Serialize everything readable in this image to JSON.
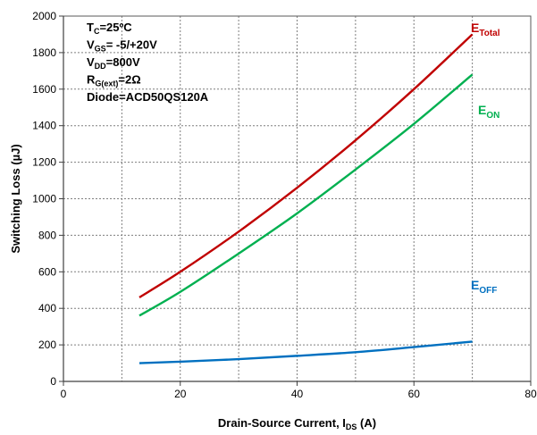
{
  "chart_data": {
    "type": "line",
    "xlabel_main": "Drain-Source Current, I",
    "xlabel_sub": "DS",
    "xlabel_unit": " (A)",
    "ylabel": "Switching Loss  (µJ)",
    "xlim": [
      0,
      80
    ],
    "ylim": [
      0,
      2000
    ],
    "xticks": [
      0,
      20,
      40,
      60,
      80
    ],
    "yticks": [
      0,
      200,
      400,
      600,
      800,
      1000,
      1200,
      1400,
      1600,
      1800,
      2000
    ],
    "grid": true,
    "conditions": [
      {
        "main": "T",
        "sub": "C",
        "rest": "=25ºC"
      },
      {
        "main": "V",
        "sub": "GS",
        "rest": "= -5/+20V"
      },
      {
        "main": "V",
        "sub": "DD",
        "rest": "=800V"
      },
      {
        "main": "R",
        "sub": "G(ext)",
        "rest": "=2Ω"
      },
      {
        "main": "Diode=ACD50QS120A",
        "sub": "",
        "rest": ""
      }
    ],
    "series": [
      {
        "name": "Total",
        "label_main": "E",
        "label_sub": "Total",
        "color": "#c00000",
        "x": [
          13,
          20,
          30,
          40,
          50,
          60,
          70
        ],
        "y": [
          460,
          600,
          820,
          1060,
          1320,
          1600,
          1900
        ]
      },
      {
        "name": "ON",
        "label_main": "E",
        "label_sub": "ON",
        "color": "#00b050",
        "x": [
          13,
          20,
          30,
          40,
          50,
          60,
          70
        ],
        "y": [
          360,
          490,
          700,
          920,
          1160,
          1410,
          1680
        ]
      },
      {
        "name": "OFF",
        "label_main": "E",
        "label_sub": "OFF",
        "color": "#0070c0",
        "x": [
          13,
          20,
          30,
          40,
          50,
          60,
          70
        ],
        "y": [
          100,
          108,
          122,
          140,
          160,
          188,
          218
        ]
      }
    ]
  }
}
